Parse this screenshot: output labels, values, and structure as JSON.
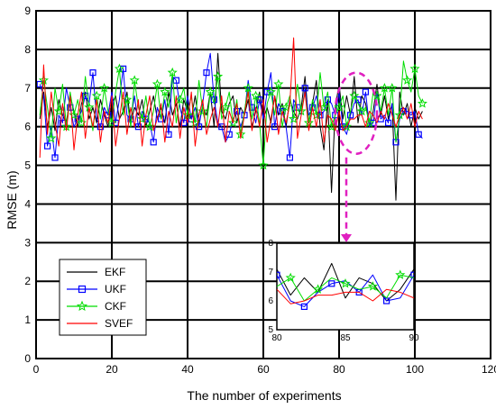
{
  "chart_data": {
    "type": "line",
    "xlabel": "The number of experiments",
    "ylabel": "RMSE (m)",
    "xlim": [
      0,
      120
    ],
    "ylim": [
      0,
      9
    ],
    "xticks": [
      "0",
      "20",
      "40",
      "60",
      "80",
      "100",
      "120"
    ],
    "yticks": [
      "0",
      "1",
      "2",
      "3",
      "4",
      "5",
      "6",
      "7",
      "8",
      "9"
    ],
    "grid": true,
    "legend_position": "lower-left",
    "x": [
      1,
      2,
      3,
      4,
      5,
      6,
      7,
      8,
      9,
      10,
      11,
      12,
      13,
      14,
      15,
      16,
      17,
      18,
      19,
      20,
      21,
      22,
      23,
      24,
      25,
      26,
      27,
      28,
      29,
      30,
      31,
      32,
      33,
      34,
      35,
      36,
      37,
      38,
      39,
      40,
      41,
      42,
      43,
      44,
      45,
      46,
      47,
      48,
      49,
      50,
      51,
      52,
      53,
      54,
      55,
      56,
      57,
      58,
      59,
      60,
      61,
      62,
      63,
      64,
      65,
      66,
      67,
      68,
      69,
      70,
      71,
      72,
      73,
      74,
      75,
      76,
      77,
      78,
      79,
      80,
      81,
      82,
      83,
      84,
      85,
      86,
      87,
      88,
      89,
      90,
      91,
      92,
      93,
      94,
      95,
      96,
      97,
      98,
      99,
      100,
      101,
      102
    ],
    "series": [
      {
        "name": "EKF",
        "color": "#000000",
        "marker": "none",
        "values": [
          6.2,
          6.9,
          6.0,
          6.5,
          5.9,
          6.7,
          6.3,
          6.1,
          6.8,
          6.4,
          6.0,
          6.6,
          6.9,
          6.2,
          6.5,
          6.1,
          6.7,
          6.3,
          6.0,
          6.6,
          6.8,
          6.2,
          6.4,
          6.9,
          6.1,
          6.5,
          6.3,
          6.7,
          6.0,
          6.4,
          6.8,
          6.2,
          6.5,
          6.1,
          6.9,
          6.3,
          6.6,
          6.0,
          6.7,
          6.4,
          6.2,
          6.8,
          6.1,
          6.5,
          6.3,
          6.9,
          6.0,
          7.9,
          6.4,
          6.2,
          6.6,
          6.8,
          6.1,
          6.5,
          6.3,
          6.7,
          6.0,
          6.4,
          6.9,
          6.2,
          6.5,
          6.1,
          6.8,
          6.3,
          6.6,
          6.0,
          6.7,
          6.4,
          6.2,
          6.5,
          7.3,
          6.1,
          6.6,
          7.2,
          6.0,
          5.4,
          6.7,
          4.3,
          6.5,
          7.1,
          6.2,
          6.8,
          6.3,
          7.3,
          6.1,
          6.8,
          6.6,
          6.0,
          6.4,
          7.1,
          6.3,
          6.8,
          6.2,
          6.6,
          4.1,
          6.9,
          6.3,
          6.6,
          6.0,
          6.5,
          6.2,
          6.4
        ]
      },
      {
        "name": "UKF",
        "color": "#0000ff",
        "marker": "square",
        "values": [
          7.1,
          6.8,
          5.5,
          6.0,
          5.2,
          6.3,
          6.1,
          7.0,
          6.5,
          6.0,
          6.2,
          6.4,
          6.8,
          6.6,
          7.4,
          6.2,
          6.0,
          6.5,
          6.3,
          6.9,
          6.1,
          6.7,
          7.5,
          6.3,
          6.2,
          6.8,
          6.0,
          6.4,
          6.2,
          6.1,
          5.6,
          6.5,
          6.2,
          6.7,
          5.8,
          7.3,
          7.2,
          6.5,
          6.1,
          6.8,
          6.2,
          6.5,
          6.0,
          6.6,
          7.4,
          7.9,
          6.7,
          6.1,
          6.0,
          5.6,
          5.8,
          6.2,
          6.4,
          6.0,
          6.3,
          7.2,
          6.5,
          6.1,
          6.7,
          6.2,
          6.9,
          7.4,
          6.0,
          6.6,
          6.4,
          6.0,
          5.2,
          6.7,
          6.5,
          6.3,
          7.0,
          6.3,
          6.5,
          6.8,
          6.3,
          6.4,
          6.7,
          6.6,
          6.3,
          6.9,
          6.0,
          5.8,
          6.3,
          6.6,
          6.7,
          6.3,
          6.9,
          6.0,
          6.1,
          6.9,
          6.2,
          6.3,
          6.1,
          6.6,
          5.6,
          6.2,
          6.4,
          6.4,
          6.3,
          6.4,
          5.8,
          5.7
        ]
      },
      {
        "name": "CKF",
        "color": "#00dd00",
        "marker": "star",
        "values": [
          6.3,
          7.2,
          6.5,
          5.7,
          7.0,
          6.4,
          7.1,
          6.0,
          6.9,
          6.3,
          6.7,
          6.1,
          7.3,
          6.5,
          5.9,
          6.8,
          6.2,
          7.0,
          6.4,
          6.1,
          6.9,
          7.5,
          6.3,
          6.7,
          6.0,
          7.2,
          6.5,
          6.2,
          6.8,
          6.0,
          6.4,
          7.1,
          6.2,
          6.9,
          6.5,
          7.4,
          6.1,
          6.7,
          7.0,
          6.3,
          6.8,
          6.1,
          7.2,
          6.4,
          6.0,
          6.9,
          6.6,
          7.3,
          6.2,
          6.5,
          6.9,
          6.1,
          6.7,
          5.8,
          6.4,
          7.0,
          6.2,
          6.8,
          6.1,
          5.0,
          6.6,
          6.9,
          6.3,
          7.1,
          6.0,
          6.5,
          6.8,
          6.2,
          7.1,
          6.4,
          6.9,
          6.1,
          6.7,
          6.3,
          7.4,
          6.5,
          6.9,
          6.0,
          6.3,
          6.5,
          6.8,
          6.0,
          6.4,
          6.8,
          6.6,
          6.4,
          6.5,
          6.1,
          6.9,
          6.8,
          6.4,
          7.0,
          6.3,
          7.0,
          5.6,
          6.3,
          7.7,
          7.2,
          6.9,
          7.5,
          6.8,
          6.6
        ]
      },
      {
        "name": "SVEF",
        "color": "#ff0000",
        "marker": "none",
        "values": [
          5.2,
          7.6,
          5.8,
          6.9,
          6.1,
          5.5,
          6.6,
          5.9,
          6.8,
          5.4,
          6.3,
          6.9,
          5.7,
          6.5,
          6.0,
          6.7,
          5.6,
          6.4,
          6.1,
          6.8,
          5.5,
          6.2,
          6.9,
          5.8,
          6.5,
          6.0,
          6.7,
          5.5,
          6.3,
          6.8,
          5.9,
          6.2,
          6.6,
          5.6,
          6.4,
          6.0,
          6.8,
          5.7,
          6.5,
          6.1,
          6.9,
          5.5,
          6.3,
          6.7,
          5.8,
          6.2,
          6.5,
          6.0,
          6.8,
          5.6,
          6.4,
          6.1,
          6.6,
          5.7,
          6.3,
          6.9,
          5.9,
          6.5,
          6.0,
          6.7,
          5.6,
          6.2,
          6.8,
          5.8,
          6.4,
          6.1,
          6.6,
          8.3,
          5.7,
          6.3,
          6.9,
          5.9,
          6.5,
          6.0,
          6.7,
          5.6,
          6.3,
          6.2,
          5.9,
          6.4,
          5.9,
          6.0,
          6.2,
          6.2,
          6.3,
          6.3,
          6.0,
          6.4,
          6.3,
          6.1,
          6.4,
          6.2,
          6.6,
          6.3,
          6.0,
          6.3,
          6.5,
          6.2,
          6.6,
          6.0,
          6.4,
          6.2
        ]
      }
    ],
    "inset": {
      "xlim": [
        80,
        90
      ],
      "ylim": [
        5,
        8
      ],
      "xticks": [
        "80",
        "85",
        "90"
      ],
      "yticks": [
        "5",
        "6",
        "7",
        "8"
      ],
      "source_region": {
        "x": [
          79,
          90
        ],
        "y": [
          5.3,
          7.4
        ]
      }
    }
  }
}
